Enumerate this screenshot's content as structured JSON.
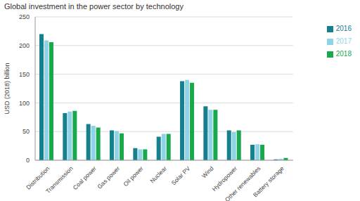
{
  "chart_data": {
    "type": "bar",
    "title": "Global investment in the power sector by technology",
    "y_label": "USD (2018) billion",
    "categories": [
      "Distribution",
      "Transmission",
      "Coal power",
      "Gas power",
      "Oil power",
      "Nuclear",
      "Solar PV",
      "Wind",
      "Hydropower",
      "Other renewables",
      "Battery storage"
    ],
    "series": [
      {
        "name": "2016",
        "color": "#17808f",
        "values": [
          220,
          82,
          63,
          52,
          21,
          41,
          138,
          94,
          52,
          27,
          1.5
        ]
      },
      {
        "name": "2017",
        "color": "#8ed3e6",
        "values": [
          209,
          85,
          60,
          51,
          19,
          46,
          140,
          88,
          49,
          28,
          2.5
        ]
      },
      {
        "name": "2018",
        "color": "#19a84c",
        "values": [
          206,
          86,
          57,
          47,
          19,
          46,
          135,
          88,
          52,
          27,
          4
        ]
      }
    ],
    "ylim": [
      0,
      250
    ],
    "yticks": [
      0,
      50,
      100,
      150,
      200,
      250
    ],
    "grid": true,
    "legend": "right"
  }
}
